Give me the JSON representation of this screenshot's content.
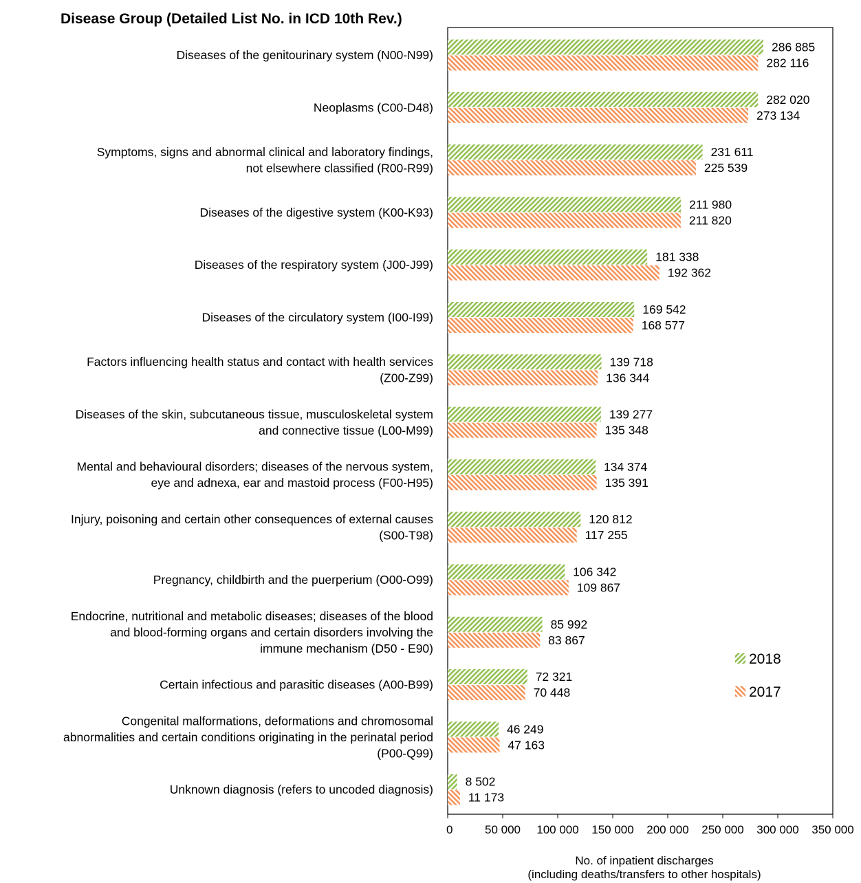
{
  "heading": "Disease Group (Detailed List No. in ICD 10th Rev.)",
  "chart_data": {
    "type": "bar",
    "orientation": "horizontal",
    "title": "",
    "xlabel_lines": [
      "No. of inpatient discharges",
      "(including deaths/transfers to other hospitals)"
    ],
    "ylabel": "Disease Group (Detailed List No. in ICD 10th Rev.)",
    "xlim": [
      0,
      350000
    ],
    "xticks": [
      0,
      50000,
      100000,
      150000,
      200000,
      250000,
      300000,
      350000
    ],
    "xtick_labels": [
      "0",
      "50 000",
      "100 000",
      "150 000",
      "200 000",
      "250 000",
      "300 000",
      "350 000"
    ],
    "grid": false,
    "legend_position": "right-bottom",
    "categories": [
      [
        "Diseases of the genitourinary system (N00-N99)"
      ],
      [
        "Neoplasms (C00-D48)"
      ],
      [
        "Symptoms, signs and abnormal clinical and laboratory findings,",
        "not elsewhere classified (R00-R99)"
      ],
      [
        "Diseases of the digestive system (K00-K93)"
      ],
      [
        "Diseases of the respiratory system (J00-J99)"
      ],
      [
        "Diseases of the circulatory system (I00-I99)"
      ],
      [
        "Factors influencing health status and contact with health services",
        "(Z00-Z99)"
      ],
      [
        "Diseases of the skin, subcutaneous tissue, musculoskeletal system",
        "and connective tissue (L00-M99)"
      ],
      [
        "Mental and behavioural disorders; diseases of the nervous system,",
        "eye and adnexa, ear and mastoid process (F00-H95)"
      ],
      [
        "Injury, poisoning and certain other consequences of external causes",
        "(S00-T98)"
      ],
      [
        "Pregnancy, childbirth and the puerperium (O00-O99)"
      ],
      [
        "Endocrine, nutritional and metabolic diseases; diseases of the blood",
        "and blood-forming organs and certain disorders involving the",
        "immune mechanism (D50 - E90)"
      ],
      [
        "Certain infectious and parasitic diseases (A00-B99)"
      ],
      [
        "Congenital malformations, deformations and chromosomal",
        "abnormalities and certain conditions originating in the perinatal period",
        "(P00-Q99)"
      ],
      [
        "Unknown diagnosis (refers to uncoded diagnosis)"
      ]
    ],
    "series": [
      {
        "name": "2018",
        "color": "#92c050",
        "values": [
          286885,
          282020,
          231611,
          211980,
          181338,
          169542,
          139718,
          139277,
          134374,
          120812,
          106342,
          85992,
          72321,
          46249,
          8502
        ],
        "labels": [
          "286 885",
          "282 020",
          "231 611",
          "211 980",
          "181 338",
          "169 542",
          "139 718",
          "139 277",
          "134 374",
          "120 812",
          "106 342",
          "85 992",
          "72 321",
          "46 249",
          "8 502"
        ]
      },
      {
        "name": "2017",
        "color": "#f4935a",
        "values": [
          282116,
          273134,
          225539,
          211820,
          192362,
          168577,
          136344,
          135348,
          135391,
          117255,
          109867,
          83867,
          70448,
          47163,
          11173
        ],
        "labels": [
          "282 116",
          "273 134",
          "225 539",
          "211 820",
          "192 362",
          "168 577",
          "136 344",
          "135 348",
          "135 391",
          "117 255",
          "109 867",
          "83 867",
          "70 448",
          "47 163",
          "11 173"
        ]
      }
    ]
  }
}
